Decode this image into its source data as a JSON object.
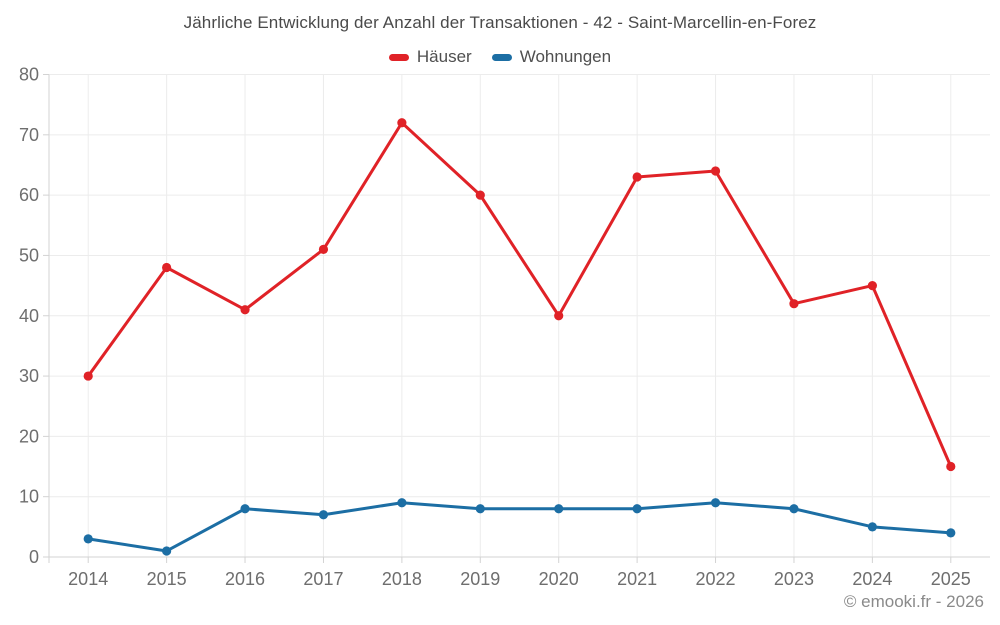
{
  "chart_data": {
    "type": "line",
    "title": "Jährliche Entwicklung der Anzahl der Transaktionen - 42 - Saint-Marcellin-en-Forez",
    "categories": [
      "2014",
      "2015",
      "2016",
      "2017",
      "2018",
      "2019",
      "2020",
      "2021",
      "2022",
      "2023",
      "2024",
      "2025"
    ],
    "series": [
      {
        "name": "Häuser",
        "color": "#e02227",
        "values": [
          30,
          48,
          41,
          51,
          72,
          60,
          40,
          63,
          64,
          42,
          45,
          15
        ]
      },
      {
        "name": "Wohnungen",
        "color": "#1c6ea4",
        "values": [
          3,
          1,
          8,
          7,
          9,
          8,
          8,
          8,
          9,
          8,
          5,
          4
        ]
      }
    ],
    "xlabel": "",
    "ylabel": "",
    "ylim": [
      0,
      80
    ],
    "yticks": [
      0,
      10,
      20,
      30,
      40,
      50,
      60,
      70,
      80
    ],
    "grid": true,
    "legend_position": "top",
    "footer": "© emooki.fr - 2026"
  },
  "colors": {
    "grid": "#ececec",
    "axis": "#d3d3d3",
    "tick_label": "#6e6e6e",
    "title_text": "#4a4a4a",
    "footer_text": "#8a8a8a"
  }
}
